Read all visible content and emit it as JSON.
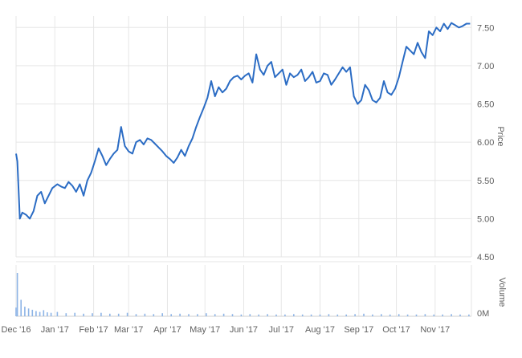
{
  "chart_data": [
    {
      "type": "line",
      "title": "",
      "xlabel": "",
      "ylabel": "Price",
      "ylim": [
        4.5,
        7.65
      ],
      "yticks": [
        "4.50",
        "5.00",
        "5.50",
        "6.00",
        "6.50",
        "7.00",
        "7.50"
      ],
      "yticks_values": [
        4.5,
        5.0,
        5.5,
        6.0,
        6.5,
        7.0,
        7.5
      ],
      "xlim": [
        "2016-12-01",
        "2017-11-30"
      ],
      "xticks": [
        "Dec '16",
        "Jan '17",
        "Feb '17",
        "Mar '17",
        "Apr '17",
        "May '17",
        "Jun '17",
        "Jul '17",
        "Aug '17",
        "Sep '17",
        "Oct '17",
        "Nov '17"
      ],
      "xticks_dates": [
        "2016-12-01",
        "2017-01-01",
        "2017-02-01",
        "2017-03-01",
        "2017-04-01",
        "2017-05-01",
        "2017-06-01",
        "2017-07-01",
        "2017-08-01",
        "2017-09-01",
        "2017-10-01",
        "2017-11-01"
      ],
      "grid": true,
      "line_color": "#2b6cc4",
      "series": [
        {
          "x": [
            "2016-12-01",
            "2016-12-02",
            "2016-12-04",
            "2016-12-06",
            "2016-12-09",
            "2016-12-12",
            "2016-12-15",
            "2016-12-18",
            "2016-12-21",
            "2016-12-24",
            "2016-12-27",
            "2016-12-30",
            "2017-01-03",
            "2017-01-06",
            "2017-01-09",
            "2017-01-12",
            "2017-01-15",
            "2017-01-18",
            "2017-01-21",
            "2017-01-24",
            "2017-01-27",
            "2017-01-30",
            "2017-02-02",
            "2017-02-05",
            "2017-02-08",
            "2017-02-11",
            "2017-02-14",
            "2017-02-17",
            "2017-02-20",
            "2017-02-23",
            "2017-02-26",
            "2017-03-01",
            "2017-03-04",
            "2017-03-07",
            "2017-03-10",
            "2017-03-13",
            "2017-03-16",
            "2017-03-19",
            "2017-03-22",
            "2017-03-25",
            "2017-03-28",
            "2017-03-31",
            "2017-04-03",
            "2017-04-06",
            "2017-04-09",
            "2017-04-12",
            "2017-04-15",
            "2017-04-18",
            "2017-04-21",
            "2017-04-24",
            "2017-04-27",
            "2017-04-30",
            "2017-05-03",
            "2017-05-06",
            "2017-05-09",
            "2017-05-12",
            "2017-05-15",
            "2017-05-18",
            "2017-05-21",
            "2017-05-24",
            "2017-05-27",
            "2017-05-30",
            "2017-06-02",
            "2017-06-05",
            "2017-06-08",
            "2017-06-11",
            "2017-06-14",
            "2017-06-17",
            "2017-06-20",
            "2017-06-23",
            "2017-06-26",
            "2017-06-29",
            "2017-07-02",
            "2017-07-05",
            "2017-07-08",
            "2017-07-11",
            "2017-07-14",
            "2017-07-17",
            "2017-07-20",
            "2017-07-23",
            "2017-07-26",
            "2017-07-29",
            "2017-08-01",
            "2017-08-04",
            "2017-08-07",
            "2017-08-10",
            "2017-08-13",
            "2017-08-16",
            "2017-08-19",
            "2017-08-22",
            "2017-08-25",
            "2017-08-28",
            "2017-08-31",
            "2017-09-03",
            "2017-09-06",
            "2017-09-09",
            "2017-09-12",
            "2017-09-15",
            "2017-09-18",
            "2017-09-21",
            "2017-09-24",
            "2017-09-27",
            "2017-09-30",
            "2017-10-03",
            "2017-10-06",
            "2017-10-09",
            "2017-10-12",
            "2017-10-15",
            "2017-10-18",
            "2017-10-21",
            "2017-10-24",
            "2017-10-27",
            "2017-10-30",
            "2017-11-02",
            "2017-11-05",
            "2017-11-08",
            "2017-11-11",
            "2017-11-14",
            "2017-11-17",
            "2017-11-20",
            "2017-11-23",
            "2017-11-26",
            "2017-11-29"
          ],
          "y": [
            5.85,
            5.75,
            5.0,
            5.08,
            5.05,
            5.0,
            5.1,
            5.3,
            5.35,
            5.2,
            5.3,
            5.4,
            5.45,
            5.42,
            5.4,
            5.48,
            5.43,
            5.35,
            5.45,
            5.3,
            5.5,
            5.6,
            5.75,
            5.92,
            5.82,
            5.7,
            5.78,
            5.85,
            5.9,
            6.2,
            5.95,
            5.88,
            5.85,
            6.0,
            6.03,
            5.97,
            6.05,
            6.03,
            5.98,
            5.93,
            5.88,
            5.82,
            5.78,
            5.73,
            5.8,
            5.9,
            5.82,
            5.95,
            6.05,
            6.2,
            6.33,
            6.45,
            6.58,
            6.8,
            6.6,
            6.72,
            6.65,
            6.7,
            6.8,
            6.85,
            6.87,
            6.82,
            6.87,
            6.9,
            6.78,
            7.15,
            6.95,
            6.88,
            7.0,
            7.05,
            6.85,
            6.9,
            6.95,
            6.75,
            6.9,
            6.85,
            6.88,
            6.95,
            6.8,
            6.85,
            6.92,
            6.78,
            6.8,
            6.9,
            6.88,
            6.75,
            6.82,
            6.9,
            6.98,
            6.92,
            6.98,
            6.6,
            6.5,
            6.55,
            6.75,
            6.68,
            6.55,
            6.52,
            6.58,
            6.8,
            6.65,
            6.62,
            6.7,
            6.85,
            7.05,
            7.25,
            7.2,
            7.15,
            7.3,
            7.18,
            7.1,
            7.45,
            7.4,
            7.5,
            7.45,
            7.55,
            7.48,
            7.56,
            7.53,
            7.5,
            7.52,
            7.55,
            7.55
          ]
        }
      ]
    },
    {
      "type": "bar",
      "title": "",
      "ylabel": "Volume",
      "yticks": [
        "0M"
      ],
      "ylim_relative": [
        0,
        1
      ],
      "bar_color": "#8db4e6",
      "series": [
        {
          "x": [
            "2016-12-01",
            "2016-12-02",
            "2016-12-05",
            "2016-12-08",
            "2016-12-11",
            "2016-12-14",
            "2016-12-17",
            "2016-12-20",
            "2016-12-23",
            "2016-12-26",
            "2016-12-29",
            "2017-01-03",
            "2017-01-10",
            "2017-01-17",
            "2017-01-24",
            "2017-01-31",
            "2017-02-07",
            "2017-02-14",
            "2017-02-21",
            "2017-02-28",
            "2017-03-07",
            "2017-03-14",
            "2017-03-21",
            "2017-03-28",
            "2017-04-04",
            "2017-04-11",
            "2017-04-18",
            "2017-04-25",
            "2017-05-02",
            "2017-05-09",
            "2017-05-16",
            "2017-05-23",
            "2017-05-30",
            "2017-06-06",
            "2017-06-13",
            "2017-06-20",
            "2017-06-27",
            "2017-07-04",
            "2017-07-11",
            "2017-07-18",
            "2017-07-25",
            "2017-08-01",
            "2017-08-08",
            "2017-08-15",
            "2017-08-22",
            "2017-08-29",
            "2017-09-05",
            "2017-09-12",
            "2017-09-19",
            "2017-09-26",
            "2017-10-03",
            "2017-10-10",
            "2017-10-17",
            "2017-10-24",
            "2017-10-31",
            "2017-11-07",
            "2017-11-14",
            "2017-11-21",
            "2017-11-28"
          ],
          "values": [
            0.2,
            1.0,
            0.38,
            0.22,
            0.18,
            0.15,
            0.12,
            0.1,
            0.14,
            0.09,
            0.08,
            0.1,
            0.07,
            0.08,
            0.06,
            0.07,
            0.08,
            0.06,
            0.06,
            0.08,
            0.05,
            0.06,
            0.05,
            0.07,
            0.05,
            0.06,
            0.05,
            0.05,
            0.07,
            0.05,
            0.06,
            0.05,
            0.04,
            0.05,
            0.04,
            0.05,
            0.04,
            0.04,
            0.05,
            0.04,
            0.04,
            0.04,
            0.05,
            0.04,
            0.04,
            0.05,
            0.06,
            0.04,
            0.05,
            0.04,
            0.05,
            0.04,
            0.04,
            0.05,
            0.04,
            0.04,
            0.05,
            0.04,
            0.04
          ]
        }
      ]
    }
  ]
}
